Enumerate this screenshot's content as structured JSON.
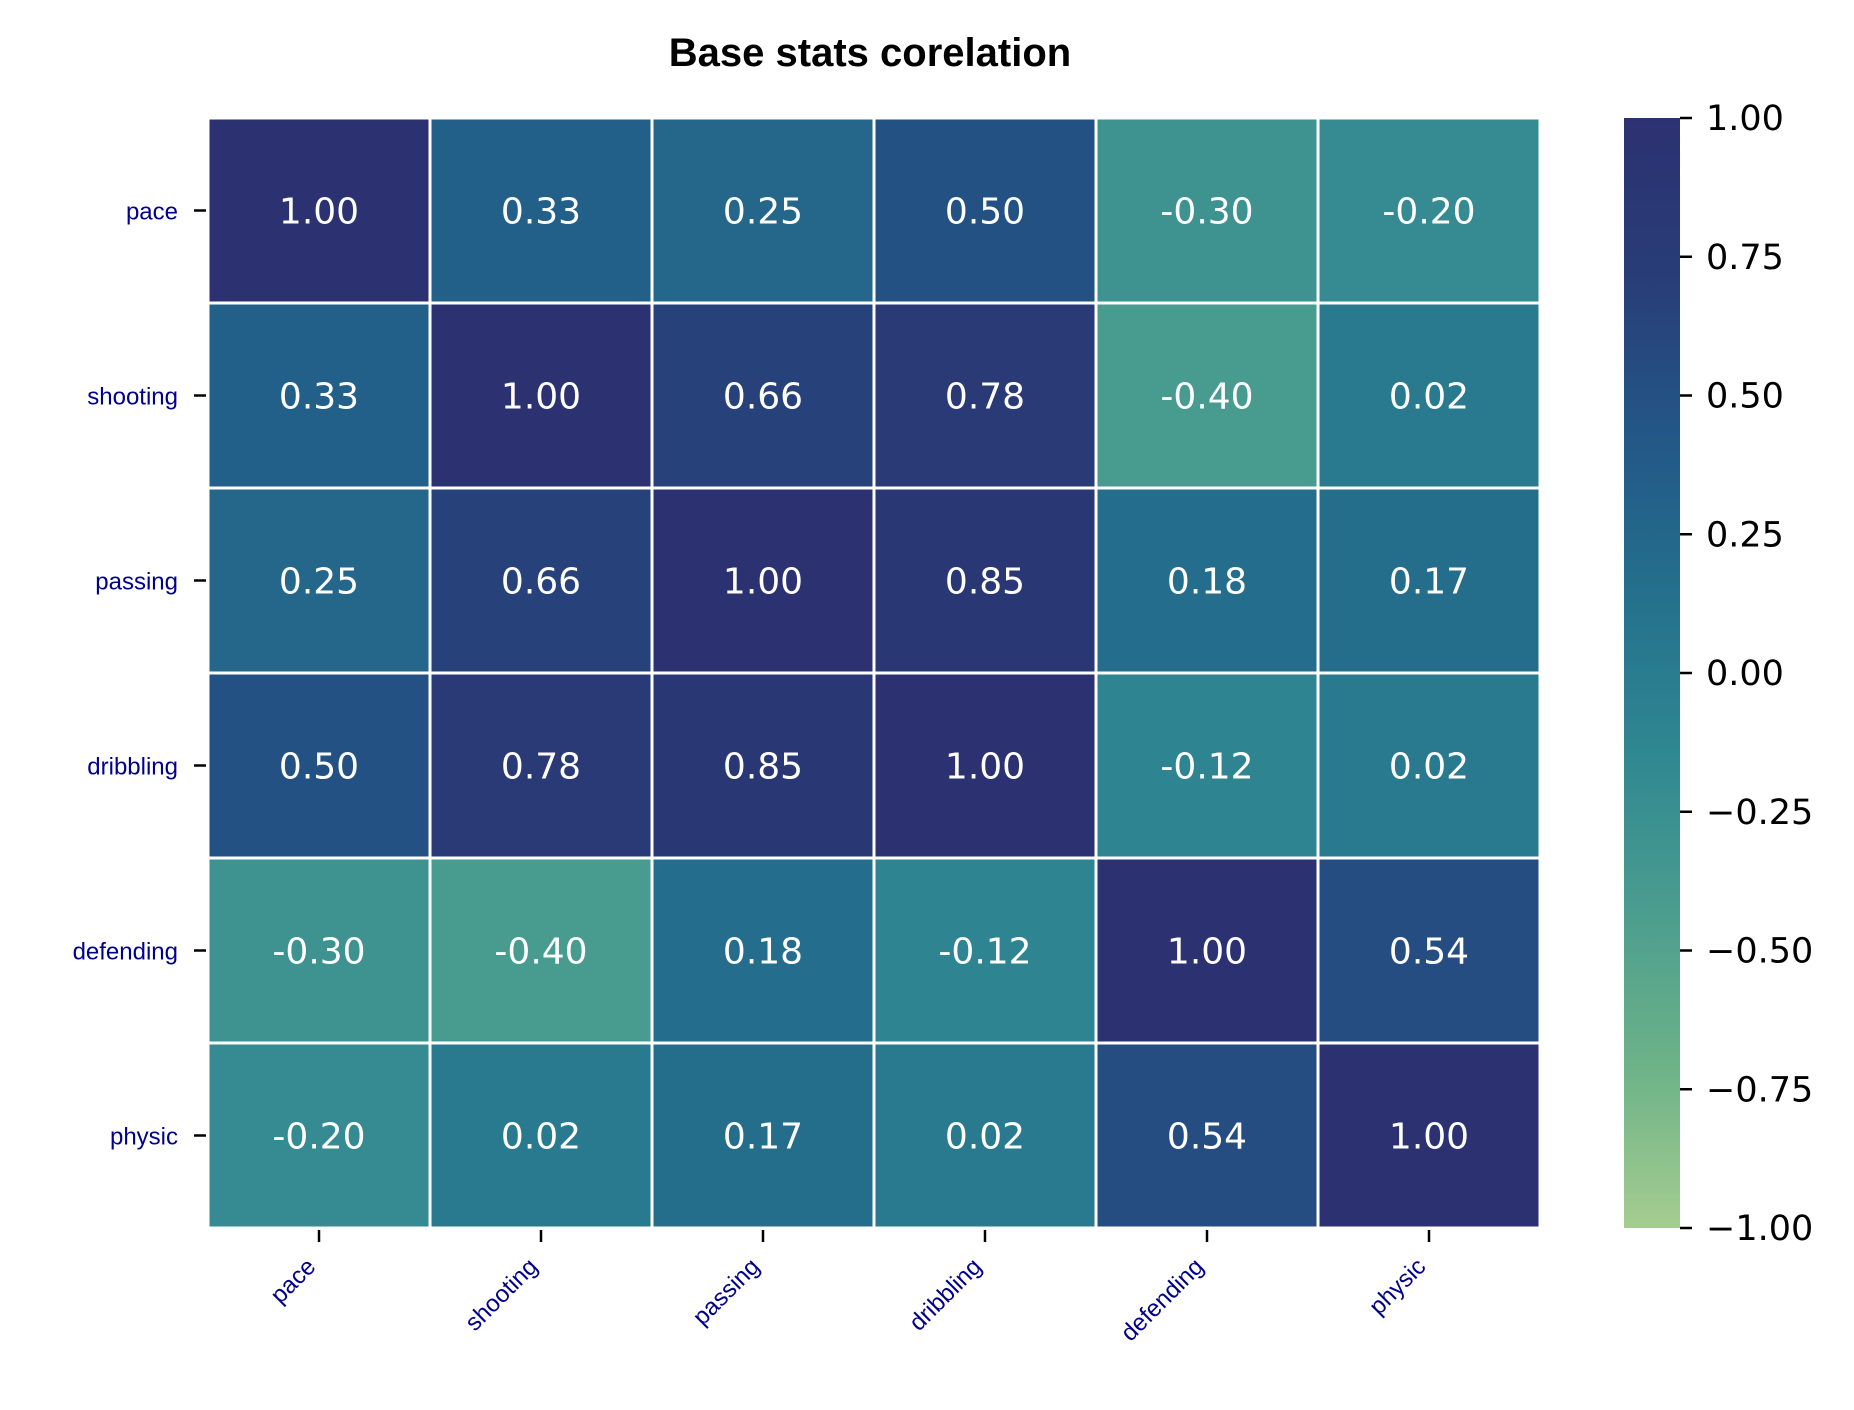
{
  "chart_data": {
    "type": "heatmap",
    "title": "Base stats corelation",
    "rows": [
      "pace",
      "shooting",
      "passing",
      "dribbling",
      "defending",
      "physic"
    ],
    "columns": [
      "pace",
      "shooting",
      "passing",
      "dribbling",
      "defending",
      "physic"
    ],
    "values": [
      [
        1.0,
        0.33,
        0.25,
        0.5,
        -0.3,
        -0.2
      ],
      [
        0.33,
        1.0,
        0.66,
        0.78,
        -0.4,
        0.02
      ],
      [
        0.25,
        0.66,
        1.0,
        0.85,
        0.18,
        0.17
      ],
      [
        0.5,
        0.78,
        0.85,
        1.0,
        -0.12,
        0.02
      ],
      [
        -0.3,
        -0.4,
        0.18,
        -0.12,
        1.0,
        0.54
      ],
      [
        -0.2,
        0.02,
        0.17,
        0.02,
        0.54,
        1.0
      ]
    ],
    "value_format": "2 decimals",
    "colormap": "crest",
    "color_stops": [
      "#a5cd90",
      "#6db388",
      "#4b9d8f",
      "#2f8791",
      "#24708d",
      "#235787",
      "#283d78",
      "#2c3172"
    ],
    "vmin": -1.0,
    "vmax": 1.0,
    "colorbar_ticks": [
      "1.00",
      "0.75",
      "0.50",
      "0.25",
      "0.00",
      "−0.25",
      "−0.50",
      "−0.75",
      "−1.00"
    ],
    "annotation_color": "#ffffff",
    "tick_label_color": "#00008b",
    "grid": "white cell separators",
    "legend": "colorbar-right"
  }
}
